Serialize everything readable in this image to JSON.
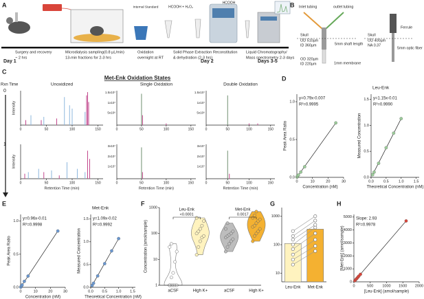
{
  "panel_labels": [
    "A",
    "B",
    "C",
    "D",
    "E",
    "F",
    "G",
    "H"
  ],
  "panel_a": {
    "steps": [
      [
        "Surgery and recovery",
        "~ 2 hrs"
      ],
      [
        "Microdialysis sampling(0.8 µL/min)",
        "13-min fractions for 2-3 hrs"
      ],
      [
        "Oxidation",
        "overnight at RT"
      ],
      [
        "Solid Phase Extraction",
        "& dehydration (2-3 hrs)"
      ],
      [
        "Reconstitution"
      ],
      [
        "Liquid Chromatography/",
        "Mass spectrometry 2-3 days"
      ]
    ],
    "days": [
      "Day 1",
      "Day 2",
      "Days 3-5"
    ],
    "reagents": [
      "Internal Standard",
      "HCOOH + H₂O₂",
      "HCOOH"
    ]
  },
  "panel_b": {
    "labels": [
      "Inlet tubing",
      "outlet tubing",
      "Skull",
      "OD 510µm",
      "ID 360µm",
      "5mm shaft length",
      "OD 320µm",
      "ID 220µm",
      "1mm membrane",
      "Ferrule",
      "Skull",
      "OD 400µm",
      "NA 0.37",
      "5mm optic fiber"
    ]
  },
  "panel_c": {
    "title": "Met-Enk Oxidation States",
    "rxn_label": "Rxn Time",
    "columns": [
      "Unoxidized",
      "Single Oxidation",
      "Double Oxidation"
    ],
    "rows": [
      "0",
      "1"
    ],
    "ylabel": "Intensity",
    "xlabel": "Retention Time (min)",
    "xlim": [
      0,
      160
    ],
    "xticks": [
      0,
      50,
      100,
      150
    ],
    "plots": [
      [
        {
          "ylabels": [],
          "peaks": [
            {
              "color": "#8db7de",
              "x": [
                20,
                45,
                85,
                95,
                100,
                125
              ],
              "h": [
                0.3,
                0.25,
                0.85,
                0.6,
                0.5,
                0.4
              ]
            },
            {
              "color": "#c2478c",
              "x": [
                10,
                40,
                70,
                128,
                130,
                132
              ],
              "h": [
                0.15,
                0.15,
                0.2,
                0.9,
                1.0,
                0.7
              ]
            }
          ]
        },
        {
          "ylabels": [
            "1.5x10⁷",
            "1x10⁷",
            "5x10⁶"
          ],
          "peaks": [
            {
              "color": "#6f8f6f",
              "x": [
                50
              ],
              "h": [
                0.95
              ]
            },
            {
              "color": "#c2478c",
              "x": [
                52,
                100
              ],
              "h": [
                0.3,
                0.05
              ]
            }
          ]
        },
        {
          "ylabels": [
            "1.5x10⁷",
            "1x10⁷",
            "5x10⁶"
          ],
          "peaks": [
            {
              "color": "#6f8f6f",
              "x": [
                50
              ],
              "h": [
                0.9
              ]
            },
            {
              "color": "#c2478c",
              "x": [
                100,
                120
              ],
              "h": [
                0.05,
                0.05
              ]
            }
          ]
        }
      ],
      [
        {
          "ylabels": [],
          "peaks": [
            {
              "color": "#8db7de",
              "x": [
                15,
                35,
                60,
                90,
                110,
                125
              ],
              "h": [
                0.2,
                0.3,
                0.25,
                0.5,
                0.3,
                0.2
              ]
            },
            {
              "color": "#c2478c",
              "x": [
                8,
                45,
                75,
                130,
                134
              ],
              "h": [
                0.15,
                0.2,
                0.1,
                0.85,
                0.6
              ]
            }
          ]
        },
        {
          "ylabels": [
            "3x10⁷",
            "2x10⁷",
            "1x10⁷"
          ],
          "peaks": [
            {
              "color": "#6f8f6f",
              "x": [
                50
              ],
              "h": [
                0.95
              ]
            },
            {
              "color": "#c2478c",
              "x": [
                52
              ],
              "h": [
                0.2
              ]
            }
          ]
        },
        {
          "ylabels": [
            "3x10⁷",
            "2x10⁷",
            "1x10⁷"
          ],
          "peaks": [
            {
              "color": "#6f8f6f",
              "x": [
                50
              ],
              "h": [
                0.85
              ]
            },
            {
              "color": "#c2478c",
              "x": [
                54
              ],
              "h": [
                0.15
              ]
            }
          ]
        }
      ]
    ]
  },
  "chart_data": [
    {
      "type": "scatter",
      "annotations": [
        "y=0.79x-0.007",
        "R²=0.9995"
      ],
      "xlabel": "Concentration (nM)",
      "ylabel": "Peak Area Ratio",
      "x": [
        0.1,
        0.25,
        0.5,
        1,
        2.5,
        5,
        25
      ],
      "values": [
        0.003,
        0.01,
        0.02,
        0.03,
        0.07,
        0.14,
        0.72
      ],
      "color": "#9ccb9a",
      "fit_line": true,
      "xlim": [
        0,
        30
      ],
      "ylim": [
        0,
        1.1
      ],
      "xticks": [
        0,
        10,
        20,
        30
      ],
      "yticks": [
        {
          "value": 0,
          "label": "0.0"
        },
        0.5,
        {
          "value": 1,
          "label": "1.0"
        }
      ]
    },
    {
      "type": "scatter",
      "title": "Leu-Enk",
      "annotations": [
        "y=1.15x-0.01",
        "R²=0.9990"
      ],
      "xlabel": "Theoretical Concentration (nM)",
      "ylabel": "Measured Concentration",
      "x": [
        0.05,
        0.1,
        0.25,
        0.5,
        0.75,
        1.0
      ],
      "values": [
        0.05,
        0.1,
        0.27,
        0.57,
        0.85,
        1.13
      ],
      "color": "#9ccb9a",
      "fit_line": true,
      "xlim": [
        0,
        1.6
      ],
      "ylim": [
        0,
        1.6
      ],
      "xticks": [
        {
          "value": 0,
          "label": "0.0"
        },
        0.5,
        {
          "value": 1,
          "label": "1.0"
        },
        1.5
      ],
      "yticks": [
        {
          "value": 0,
          "label": "0.0"
        },
        0.5,
        {
          "value": 1,
          "label": "1.0"
        },
        1.5
      ]
    },
    {
      "type": "scatter",
      "annotations": [
        "y=0.96x-0.01",
        "R²=0.9998"
      ],
      "xlabel": "Concentration (nM)",
      "ylabel": "Peak Area Ratio",
      "x": [
        0.1,
        0.5,
        1,
        2.5,
        5,
        25
      ],
      "values": [
        0.003,
        0.02,
        0.035,
        0.09,
        0.17,
        0.85
      ],
      "color": "#6a97cf",
      "fit_line": true,
      "xlim": [
        0,
        30
      ],
      "ylim": [
        0,
        1.1
      ],
      "xticks": [
        0,
        10,
        20,
        30
      ],
      "yticks": [
        {
          "value": 0,
          "label": "0.0"
        },
        0.5,
        {
          "value": 1,
          "label": "1.0"
        }
      ]
    },
    {
      "type": "scatter",
      "title": "Met-Enk",
      "annotations": [
        "y=1.09x-0.02",
        "R²=0.9992"
      ],
      "xlabel": "Theoretical Concentration (nM)",
      "ylabel": "Measured Concentration",
      "x": [
        0.05,
        0.1,
        0.25,
        0.5,
        0.75,
        1.0
      ],
      "values": [
        0.04,
        0.09,
        0.25,
        0.52,
        0.8,
        1.07
      ],
      "color": "#6a97cf",
      "fit_line": true,
      "xlim": [
        0,
        1.6
      ],
      "ylim": [
        0,
        1.6
      ],
      "xticks": [
        {
          "value": 0,
          "label": "0.0"
        },
        0.5,
        {
          "value": 1,
          "label": "1.0"
        },
        1.5
      ],
      "yticks": [
        {
          "value": 0,
          "label": "0.0"
        },
        0.5,
        {
          "value": 1,
          "label": "1.0"
        },
        1.5
      ]
    },
    {
      "type": "violin",
      "ylabel": "Concentration (amol/sample)",
      "log_y": true,
      "categories": [
        "aCSF",
        "High K+",
        "aCSF",
        "High K+"
      ],
      "colors": [
        "#ffffff",
        "#fff3bf",
        "#bdbdbd",
        "#f4b131"
      ],
      "values": [
        [
          1,
          1,
          1,
          1,
          1,
          1,
          2,
          3,
          8,
          20,
          30,
          40
        ],
        [
          15,
          30,
          50,
          70,
          80,
          100,
          120,
          150,
          200,
          300,
          400
        ],
        [
          20,
          30,
          40,
          50,
          60,
          70,
          80,
          90,
          100,
          120,
          150,
          250
        ],
        [
          50,
          80,
          100,
          120,
          150,
          180,
          200,
          250,
          300,
          350,
          400,
          500,
          700
        ]
      ],
      "groups": [
        {
          "title": "Leu-Enk",
          "p": "<0.0001"
        },
        {
          "title": "Met-Enk",
          "p": "0.0017"
        }
      ],
      "ylim": [
        1,
        1000
      ],
      "yticks": [
        1,
        10,
        100,
        1000
      ]
    },
    {
      "type": "paired_bar",
      "log_y": true,
      "categories": [
        "Leu-Enk",
        "Met-Enk"
      ],
      "values": [
        110,
        350
      ],
      "colors": [
        "#fff3bf",
        "#f4b131"
      ],
      "points": [
        [
          20,
          30,
          45,
          70,
          100,
          150,
          200,
          300
        ],
        [
          60,
          90,
          150,
          250,
          400,
          500,
          700,
          1000
        ]
      ],
      "ylim": [
        5,
        2000
      ],
      "yticks": [
        10,
        100,
        1000
      ]
    },
    {
      "type": "scatter",
      "annotations": [
        "Slope: 2.93",
        "R²=0.9978"
      ],
      "xlabel": "[Leu-Enk] (amol/sample)",
      "ylabel": "[Met-Enk] (amol/sample)",
      "x": [
        30,
        60,
        90,
        120,
        150,
        200,
        1600
      ],
      "values": [
        90,
        180,
        260,
        350,
        440,
        580,
        4700
      ],
      "color": "#d9453a",
      "fit_line": true,
      "xlim": [
        0,
        2000
      ],
      "ylim": [
        0,
        5200
      ],
      "xticks": [
        0,
        500,
        1000,
        1500,
        2000
      ],
      "yticks": [
        0,
        1000,
        2000,
        3000,
        4000,
        5000
      ]
    }
  ]
}
